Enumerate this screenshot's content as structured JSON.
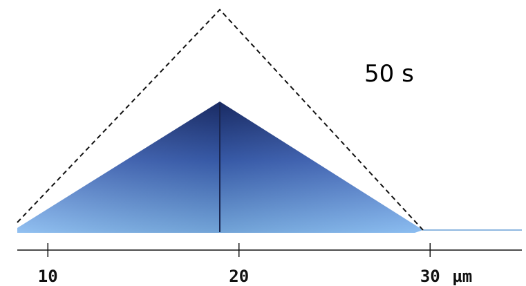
{
  "label": "50 s",
  "axis": {
    "lim": [
      8.4,
      34.8
    ],
    "ticks": [
      10,
      20,
      30
    ],
    "unit": "µm"
  }
}
